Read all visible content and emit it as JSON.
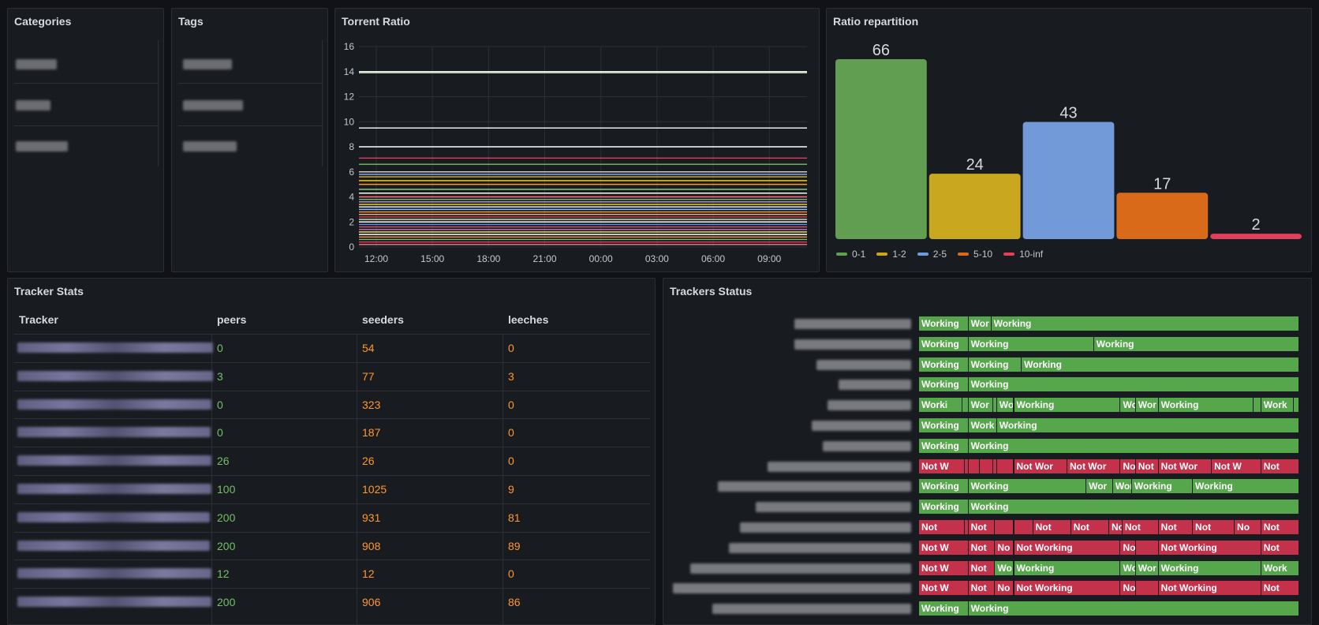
{
  "panels": {
    "categories": {
      "title": "Categories"
    },
    "tags": {
      "title": "Tags"
    },
    "torrent_ratio": {
      "title": "Torrent Ratio"
    },
    "ratio_repartition": {
      "title": "Ratio repartition"
    },
    "tracker_stats": {
      "title": "Tracker Stats"
    },
    "trackers_status": {
      "title": "Trackers Status"
    }
  },
  "tracker_stats": {
    "columns": [
      "Tracker",
      "peers",
      "seeders",
      "leeches"
    ],
    "rows": [
      {
        "peers": "0",
        "seeders": "54",
        "leeches": "0"
      },
      {
        "peers": "3",
        "seeders": "77",
        "leeches": "3"
      },
      {
        "peers": "0",
        "seeders": "323",
        "leeches": "0"
      },
      {
        "peers": "0",
        "seeders": "187",
        "leeches": "0"
      },
      {
        "peers": "26",
        "seeders": "26",
        "leeches": "0"
      },
      {
        "peers": "100",
        "seeders": "1025",
        "leeches": "9"
      },
      {
        "peers": "200",
        "seeders": "931",
        "leeches": "81"
      },
      {
        "peers": "200",
        "seeders": "908",
        "leeches": "89"
      },
      {
        "peers": "12",
        "seeders": "12",
        "leeches": "0"
      },
      {
        "peers": "200",
        "seeders": "906",
        "leeches": "86"
      }
    ]
  },
  "status_labels": {
    "working": "Working",
    "not_working": "Not Working"
  },
  "chart_data": [
    {
      "type": "line",
      "title": "Torrent Ratio",
      "x_ticks": [
        "12:00",
        "15:00",
        "18:00",
        "21:00",
        "00:00",
        "03:00",
        "06:00",
        "09:00"
      ],
      "y_ticks": [
        "0",
        "2",
        "4",
        "6",
        "8",
        "10",
        "12",
        "14",
        "16"
      ],
      "ylim": [
        0,
        16
      ],
      "series_levels": [
        14,
        13.9,
        9.5,
        8.0,
        7.1,
        6.6,
        6.0,
        5.8,
        5.6,
        5.3,
        5.0,
        4.6,
        4.3,
        4.0,
        3.8,
        3.6,
        3.4,
        3.2,
        3.0,
        2.8,
        2.6,
        2.4,
        2.2,
        2.0,
        1.8,
        1.6,
        1.4,
        1.2,
        1.0,
        0.8,
        0.6,
        0.4,
        0.2
      ],
      "series_colors": [
        "#f2f2f2",
        "#b7e0a8",
        "#ffffff",
        "#ffffff",
        "#e0405a",
        "#73bf69",
        "#cccccc",
        "#8ab8ff",
        "#e8b21e",
        "#f2cc0c",
        "#ff9830",
        "#96d98d",
        "#ffffff",
        "#ff7383",
        "#73bf69",
        "#ca95e5",
        "#fade2a",
        "#ffffff",
        "#8ab8ff",
        "#ff9830",
        "#ffb357",
        "#e0405a",
        "#c8f2c2",
        "#ffffff",
        "#5794f2",
        "#f2495c",
        "#b877d9",
        "#ffee52",
        "#ffffff",
        "#ff9830",
        "#73bf69",
        "#e0405a",
        "#ff7383"
      ]
    },
    {
      "type": "bar",
      "title": "Ratio repartition",
      "categories": [
        "0-1",
        "1-2",
        "2-5",
        "5-10",
        "10-inf"
      ],
      "values": [
        66,
        24,
        43,
        17,
        2
      ],
      "colors": [
        "#629e51",
        "#c9a81f",
        "#7299d8",
        "#d86a19",
        "#e0405a"
      ],
      "ylim": [
        0,
        66
      ]
    }
  ],
  "trackers_timeline": [
    [
      [
        "w",
        "Working",
        0,
        13
      ],
      [
        "w",
        "Wor",
        13,
        19
      ],
      [
        "w",
        "Working",
        19,
        100
      ]
    ],
    [
      [
        "w",
        "Working",
        0,
        13
      ],
      [
        "w",
        "Working",
        13,
        46
      ],
      [
        "w",
        "Working",
        46,
        100
      ]
    ],
    [
      [
        "w",
        "Working",
        0,
        13
      ],
      [
        "w",
        "Working",
        13,
        27
      ],
      [
        "w",
        "Working",
        27,
        100
      ]
    ],
    [
      [
        "w",
        "Working",
        0,
        13
      ],
      [
        "w",
        "Working",
        13,
        100
      ]
    ],
    [
      [
        "w",
        "Worki",
        0,
        11.5
      ],
      [
        "w",
        "",
        11.5,
        13
      ],
      [
        "w",
        "Wor",
        13,
        19.5
      ],
      [
        "w",
        "",
        19.5,
        20.5
      ],
      [
        "w",
        "Wo",
        20.5,
        25
      ],
      [
        "w",
        "Working",
        25,
        53
      ],
      [
        "w",
        "Wo",
        53,
        57
      ],
      [
        "w",
        "Wor",
        57,
        63
      ],
      [
        "w",
        "Working",
        63,
        88
      ],
      [
        "w",
        "",
        88,
        90
      ],
      [
        "w",
        "Work",
        90,
        98.5
      ],
      [
        "w",
        "",
        98.5,
        100
      ]
    ],
    [
      [
        "w",
        "Working",
        0,
        13
      ],
      [
        "w",
        "Work",
        13,
        20.5
      ],
      [
        "w",
        "Working",
        20.5,
        100
      ]
    ],
    [
      [
        "w",
        "Working",
        0,
        13
      ],
      [
        "w",
        "Working",
        13,
        100
      ]
    ],
    [
      [
        "n",
        "Not W",
        0,
        12
      ],
      [
        "n",
        "",
        12,
        13
      ],
      [
        "n",
        "",
        13,
        16
      ],
      [
        "n",
        "",
        16,
        19.5
      ],
      [
        "n",
        "",
        19.5,
        20.5
      ],
      [
        "n",
        "",
        20.5,
        25
      ],
      [
        "n",
        "Not Wor",
        25,
        39
      ],
      [
        "n",
        "Not Wor",
        39,
        53
      ],
      [
        "n",
        "No",
        53,
        57
      ],
      [
        "n",
        "Not",
        57,
        63
      ],
      [
        "n",
        "Not Wor",
        63,
        77
      ],
      [
        "n",
        "Not W",
        77,
        90
      ],
      [
        "n",
        "Not",
        90,
        100
      ]
    ],
    [
      [
        "w",
        "Working",
        0,
        13
      ],
      [
        "w",
        "Working",
        13,
        44
      ],
      [
        "w",
        "Wor",
        44,
        51
      ],
      [
        "w",
        "Wor",
        51,
        56
      ],
      [
        "w",
        "Working",
        56,
        72
      ],
      [
        "w",
        "Working",
        72,
        100
      ]
    ],
    [
      [
        "w",
        "Working",
        0,
        13
      ],
      [
        "w",
        "Working",
        13,
        100
      ]
    ],
    [
      [
        "n",
        "Not",
        0,
        12
      ],
      [
        "n",
        "",
        12,
        13
      ],
      [
        "n",
        "Not",
        13,
        20
      ],
      [
        "n",
        "",
        20,
        25
      ],
      [
        "n",
        "",
        25,
        30
      ],
      [
        "n",
        "Not",
        30,
        40
      ],
      [
        "n",
        "Not",
        40,
        50
      ],
      [
        "n",
        "No",
        50,
        53.5
      ],
      [
        "n",
        "Not",
        53.5,
        63
      ],
      [
        "n",
        "Not",
        63,
        72
      ],
      [
        "n",
        "Not",
        72,
        83
      ],
      [
        "n",
        "No",
        83,
        90
      ],
      [
        "n",
        "Not",
        90,
        100
      ]
    ],
    [
      [
        "n",
        "Not W",
        0,
        13
      ],
      [
        "n",
        "Not",
        13,
        20
      ],
      [
        "n",
        "No",
        20,
        25
      ],
      [
        "n",
        "Not Working",
        25,
        53
      ],
      [
        "n",
        "No",
        53,
        57
      ],
      [
        "n",
        "",
        57,
        63
      ],
      [
        "n",
        "Not Working",
        63,
        90
      ],
      [
        "n",
        "Not",
        90,
        100
      ]
    ],
    [
      [
        "n",
        "Not W",
        0,
        13
      ],
      [
        "n",
        "Not",
        13,
        20
      ],
      [
        "w",
        "Wo",
        20,
        25
      ],
      [
        "w",
        "Working",
        25,
        53
      ],
      [
        "w",
        "Wo",
        53,
        57
      ],
      [
        "w",
        "Wor",
        57,
        63
      ],
      [
        "w",
        "Working",
        63,
        90
      ],
      [
        "w",
        "Work",
        90,
        100
      ]
    ],
    [
      [
        "n",
        "Not W",
        0,
        13
      ],
      [
        "n",
        "Not",
        13,
        20
      ],
      [
        "n",
        "No",
        20,
        25
      ],
      [
        "n",
        "Not Working",
        25,
        53
      ],
      [
        "n",
        "No",
        53,
        57
      ],
      [
        "n",
        "",
        57,
        63
      ],
      [
        "n",
        "Not Working",
        63,
        90
      ],
      [
        "n",
        "Not",
        90,
        100
      ]
    ],
    [
      [
        "w",
        "Working",
        0,
        13
      ],
      [
        "w",
        "Working",
        13,
        100
      ]
    ]
  ]
}
